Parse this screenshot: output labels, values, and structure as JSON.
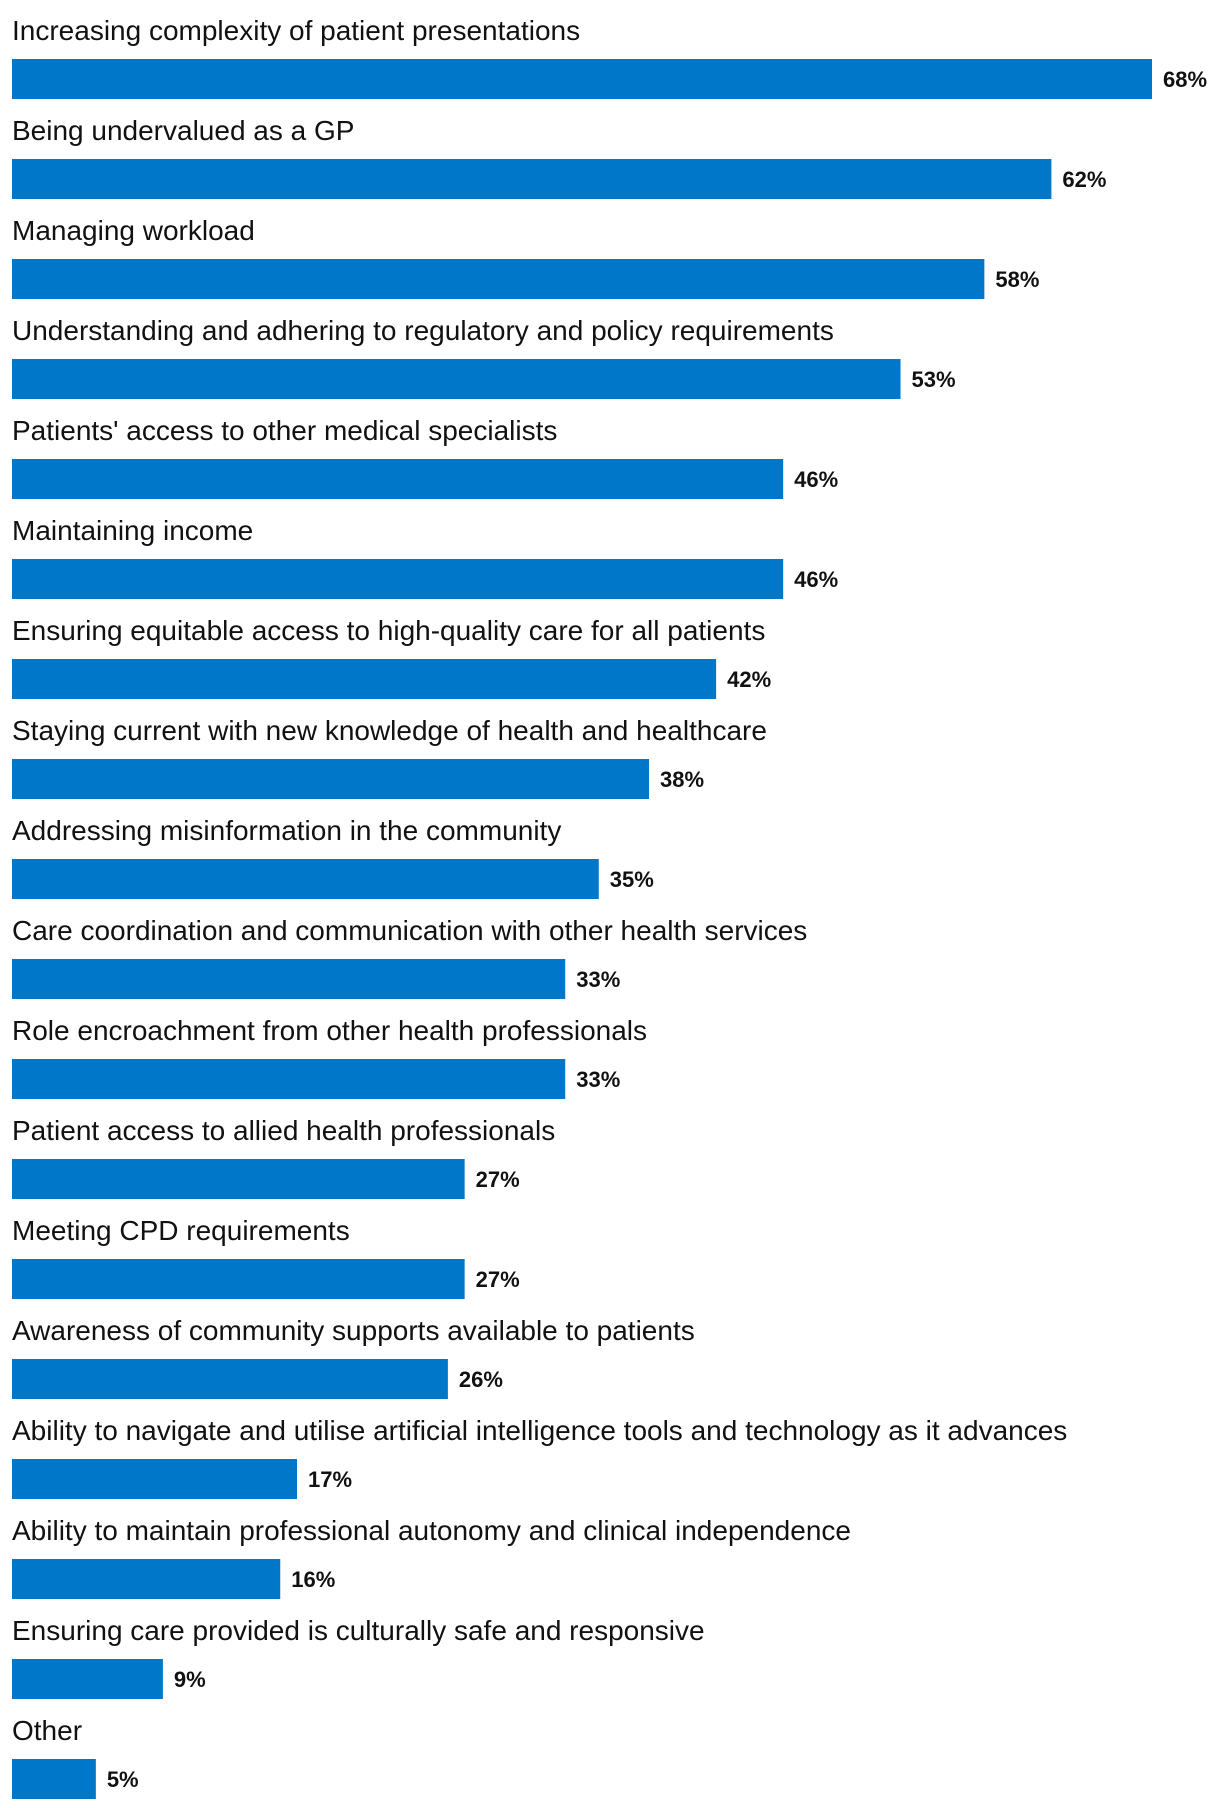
{
  "chart_data": {
    "type": "bar",
    "orientation": "horizontal",
    "value_suffix": "%",
    "bar_color": "#0077C8",
    "text_color": "#111111",
    "xlim": [
      0,
      68
    ],
    "categories": [
      "Increasing complexity of patient presentations",
      "Being undervalued as a GP",
      "Managing workload",
      "Understanding and adhering to regulatory and policy requirements",
      "Patients' access to other medical specialists",
      "Maintaining income",
      "Ensuring equitable access to high-quality care for all patients",
      "Staying current with new knowledge of health and healthcare",
      "Addressing misinformation in the community",
      "Care coordination and communication with other health services",
      "Role encroachment from other health professionals",
      "Patient access to allied health professionals",
      "Meeting CPD requirements",
      "Awareness of community supports available to patients",
      "Ability to navigate and utilise artificial intelligence tools and technology as it advances",
      "Ability to maintain professional autonomy and clinical independence",
      "Ensuring care provided is culturally safe and responsive",
      "Other"
    ],
    "values": [
      68,
      62,
      58,
      53,
      46,
      46,
      42,
      38,
      35,
      33,
      33,
      27,
      27,
      26,
      17,
      16,
      9,
      5
    ],
    "value_labels": [
      "68%",
      "62%",
      "58%",
      "53%",
      "46%",
      "46%",
      "42%",
      "38%",
      "35%",
      "33%",
      "33%",
      "27%",
      "27%",
      "26%",
      "17%",
      "16%",
      "9%",
      "5%"
    ]
  }
}
